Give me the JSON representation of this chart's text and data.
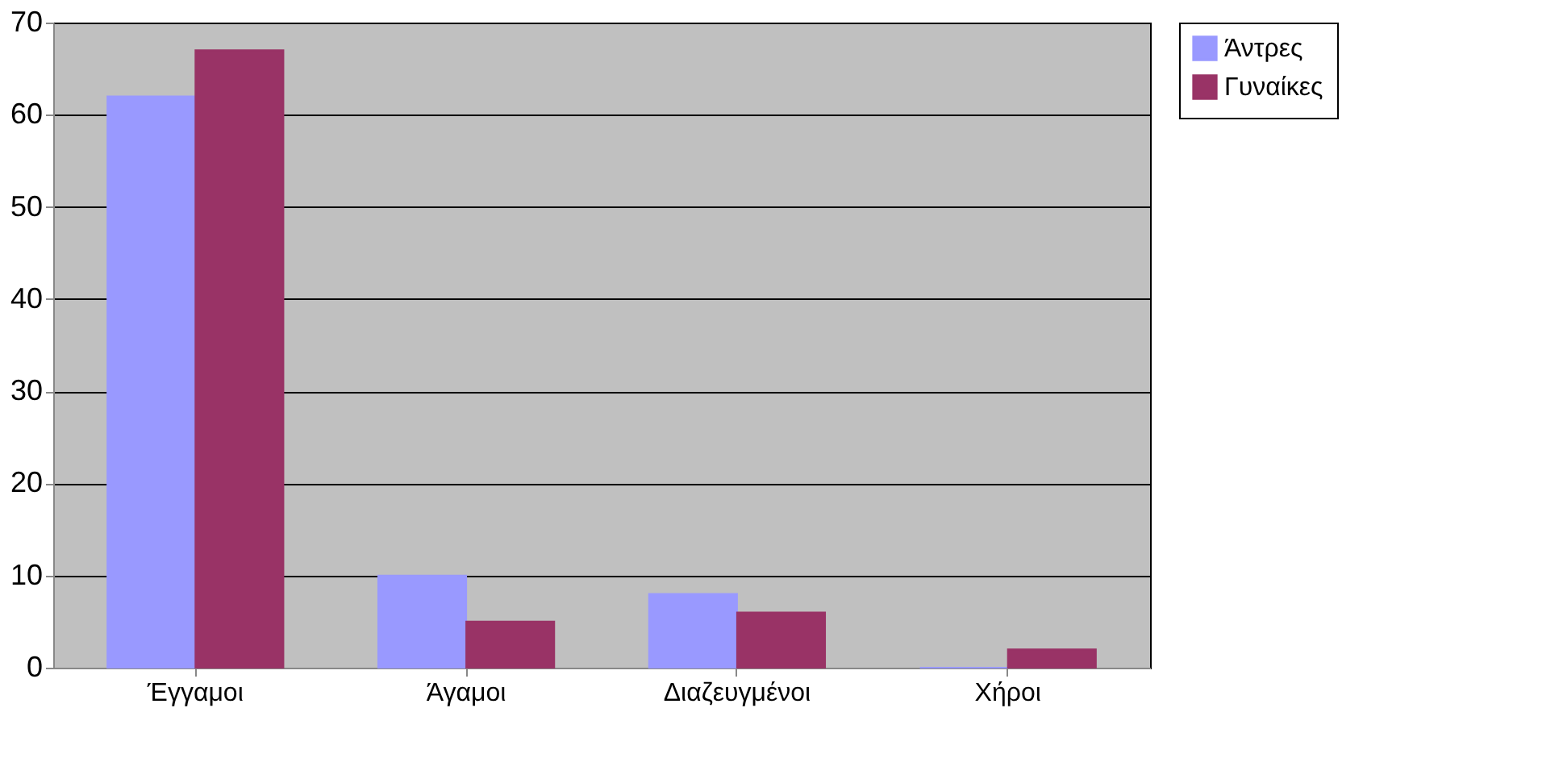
{
  "chart_data": {
    "type": "bar",
    "categories": [
      "Έγγαμοι",
      "Άγαμοι",
      "Διαζευγμένοι",
      "Χήροι"
    ],
    "series": [
      {
        "name": "Άντρες",
        "color": "#9999ff",
        "values": [
          62,
          10,
          8,
          0
        ]
      },
      {
        "name": "Γυναίκες",
        "color": "#993366",
        "values": [
          67,
          5,
          6,
          2
        ]
      }
    ],
    "ylim": [
      0,
      70
    ],
    "yticks": [
      0,
      10,
      20,
      30,
      40,
      50,
      60,
      70
    ],
    "grid": "y",
    "legend": "top right"
  }
}
